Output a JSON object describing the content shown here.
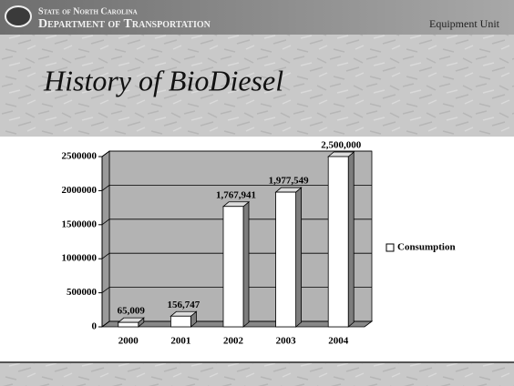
{
  "header": {
    "agency_line1": "State of North Carolina",
    "agency_line2": "Department of Transportation",
    "unit": "Equipment Unit"
  },
  "chart_data": {
    "type": "bar3d",
    "title": "History of BioDiesel",
    "categories": [
      "2000",
      "2001",
      "2002",
      "2003",
      "2004"
    ],
    "series": [
      {
        "name": "Consumption",
        "color": "#ffffff",
        "values": [
          65009,
          156747,
          1767941,
          1977549,
          2500000
        ],
        "value_labels": [
          "65,009",
          "156,747",
          "1,767,941",
          "1,977,549",
          "2,500,000"
        ]
      }
    ],
    "ylim": [
      0,
      2500000
    ],
    "yticks": [
      0,
      500000,
      1000000,
      1500000,
      2000000,
      2500000
    ],
    "grid": true,
    "legend": "right"
  }
}
